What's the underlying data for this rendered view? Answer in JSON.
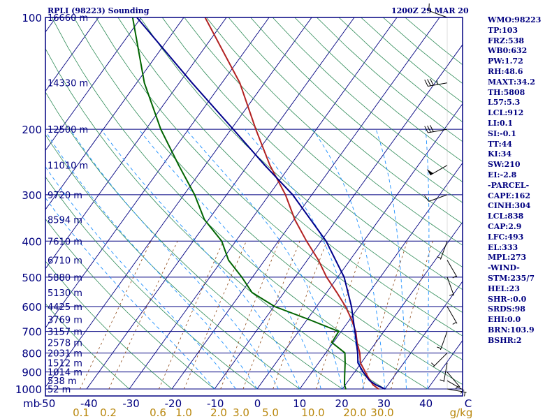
{
  "header": {
    "station": "RPLI (98223) Sounding",
    "time": "1200Z 29 MAR 20"
  },
  "chart_data": {
    "type": "line",
    "title": "RPLI (98223) Sounding",
    "xlabel": "",
    "ylabel": "",
    "pressure_axis": {
      "label": "mb",
      "range": [
        1000,
        100
      ],
      "scale": "log",
      "ticks": [
        100,
        200,
        300,
        400,
        500,
        600,
        700,
        800,
        900,
        1000
      ]
    },
    "temperature_axis": {
      "range": [
        -50,
        50
      ],
      "ticks": [
        "-50",
        "-40",
        "-30",
        "-20",
        "-10",
        "0",
        "10",
        "20",
        "30",
        "40",
        "C"
      ]
    },
    "mixing_ratio_axis": {
      "label": "g/kg",
      "ticks": [
        "0.1",
        "0.2",
        "0.6",
        "1.0",
        "2.0",
        "3.0",
        "5.0",
        "10.0",
        "20.0",
        "30.0",
        "g/kg"
      ]
    },
    "height_labels": [
      {
        "p": 100,
        "label": "16660 m"
      },
      {
        "p": 150,
        "label": "14330 m"
      },
      {
        "p": 200,
        "label": "12500 m"
      },
      {
        "p": 250,
        "label": "11010 m"
      },
      {
        "p": 300,
        "label": "9720 m"
      },
      {
        "p": 350,
        "label": "8594 m"
      },
      {
        "p": 400,
        "label": "7610 m"
      },
      {
        "p": 450,
        "label": "6710 m"
      },
      {
        "p": 500,
        "label": "5880 m"
      },
      {
        "p": 550,
        "label": "5130 m"
      },
      {
        "p": 600,
        "label": "4425 m"
      },
      {
        "p": 650,
        "label": "3769 m"
      },
      {
        "p": 700,
        "label": "3157 m"
      },
      {
        "p": 750,
        "label": "2578 m"
      },
      {
        "p": 800,
        "label": "2031 m"
      },
      {
        "p": 850,
        "label": "1512 m"
      },
      {
        "p": 900,
        "label": "1014 m"
      },
      {
        "p": 950,
        "label": "538 m"
      },
      {
        "p": 1000,
        "label": "52 m"
      }
    ],
    "series": [
      {
        "color": "#b22222",
        "values": [
          {
            "p": 1000,
            "t": 28.5
          },
          {
            "p": 975,
            "t": 26.5
          },
          {
            "p": 925,
            "t": 23.8
          },
          {
            "p": 850,
            "t": 19.8
          },
          {
            "p": 800,
            "t": 18.0
          },
          {
            "p": 750,
            "t": 15.6
          },
          {
            "p": 700,
            "t": 13.4
          },
          {
            "p": 650,
            "t": 10.4
          },
          {
            "p": 600,
            "t": 6.8
          },
          {
            "p": 550,
            "t": 2.4
          },
          {
            "p": 500,
            "t": -2.6
          },
          {
            "p": 450,
            "t": -7.4
          },
          {
            "p": 400,
            "t": -13.4
          },
          {
            "p": 350,
            "t": -19.8
          },
          {
            "p": 300,
            "t": -26.2
          },
          {
            "p": 250,
            "t": -34.8
          },
          {
            "p": 200,
            "t": -44.2
          },
          {
            "p": 150,
            "t": -55.8
          },
          {
            "p": 100,
            "t": -75.0
          }
        ]
      },
      {
        "color": "#006400",
        "values": [
          {
            "p": 1000,
            "t": 20.8
          },
          {
            "p": 975,
            "t": 19.8
          },
          {
            "p": 925,
            "t": 18.4
          },
          {
            "p": 850,
            "t": 16.2
          },
          {
            "p": 800,
            "t": 14.5
          },
          {
            "p": 750,
            "t": 9.7
          },
          {
            "p": 700,
            "t": 9.4
          },
          {
            "p": 650,
            "t": 0.4
          },
          {
            "p": 600,
            "t": -9.8
          },
          {
            "p": 550,
            "t": -17.5
          },
          {
            "p": 500,
            "t": -22.5
          },
          {
            "p": 450,
            "t": -28.5
          },
          {
            "p": 400,
            "t": -33.3
          },
          {
            "p": 350,
            "t": -41.0
          },
          {
            "p": 300,
            "t": -47.5
          },
          {
            "p": 250,
            "t": -56.2
          },
          {
            "p": 200,
            "t": -66.5
          },
          {
            "p": 150,
            "t": -78.2
          },
          {
            "p": 100,
            "t": -92.0
          }
        ]
      },
      {
        "color": "#00008b",
        "values": [
          {
            "p": 1000,
            "t": 30.0
          },
          {
            "p": 975,
            "t": 27.2
          },
          {
            "p": 950,
            "t": 25.0
          },
          {
            "p": 925,
            "t": 23.5
          },
          {
            "p": 900,
            "t": 22.0
          },
          {
            "p": 850,
            "t": 19.2
          },
          {
            "p": 800,
            "t": 17.5
          },
          {
            "p": 700,
            "t": 13.2
          },
          {
            "p": 600,
            "t": 8.2
          },
          {
            "p": 500,
            "t": 1.5
          },
          {
            "p": 400,
            "t": -8.8
          },
          {
            "p": 300,
            "t": -24.5
          },
          {
            "p": 250,
            "t": -36.0
          },
          {
            "p": 200,
            "t": -49.5
          },
          {
            "p": 150,
            "t": -67.0
          },
          {
            "p": 100,
            "t": -91.0
          }
        ]
      }
    ],
    "winds": [
      {
        "p": 1000,
        "dir": 100,
        "kt": 5
      },
      {
        "p": 950,
        "dir": 120,
        "kt": 5
      },
      {
        "p": 900,
        "dir": 140,
        "kt": 5
      },
      {
        "p": 850,
        "dir": 190,
        "kt": 5
      },
      {
        "p": 800,
        "dir": 225,
        "kt": 5
      },
      {
        "p": 700,
        "dir": 200,
        "kt": 5
      },
      {
        "p": 600,
        "dir": 150,
        "kt": 5
      },
      {
        "p": 500,
        "dir": 160,
        "kt": 5
      },
      {
        "p": 450,
        "dir": 150,
        "kt": 5
      },
      {
        "p": 400,
        "dir": 200,
        "kt": 5
      },
      {
        "p": 300,
        "dir": 250,
        "kt": 10
      },
      {
        "p": 250,
        "dir": 240,
        "kt": 50
      },
      {
        "p": 200,
        "dir": 260,
        "kt": 30
      },
      {
        "p": 150,
        "dir": 260,
        "kt": 35
      },
      {
        "p": 100,
        "dir": 290,
        "kt": 10
      }
    ],
    "grid": true
  },
  "indices": [
    "WMO:98223",
    "TP:103",
    "FRZ:538",
    "WB0:632",
    "PW:1.72",
    "RH:48.6",
    "MAXT:34.2",
    "TH:5808",
    "L57:5.3",
    "LCL:912",
    "LI:0.1",
    "SI:-0.1",
    "TT:44",
    "KI:34",
    "SW:210",
    "EI:-2.8",
    "-PARCEL-",
    "CAPE:162",
    "CINH:304",
    "LCL:838",
    "CAP:2.9",
    "LFC:493",
    "EL:333",
    "MPL:273",
    "-WIND-",
    "STM:235/7",
    "HEL:23",
    "SHR-:0.0",
    "SRDS:98",
    "EHI:0.0",
    "BRN:103.9",
    "BSHR:2"
  ],
  "colors": {
    "isobar": "#000080",
    "isotherm": "#000080",
    "dry_adiabat": "#2e8b57",
    "moist_adiabat": "#008000",
    "mixing_ratio": "#8b4513",
    "wet_bulb_dash": "#1e90ff",
    "barb": "#000000",
    "border": "#000080"
  }
}
